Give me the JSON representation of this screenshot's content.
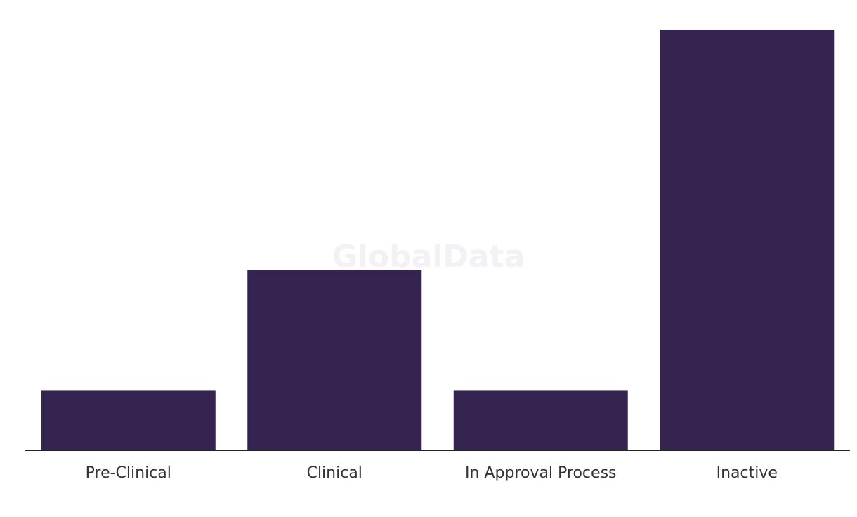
{
  "chart_data": {
    "type": "bar",
    "watermark": "GlobalData",
    "categories": [
      "Pre-Clinical",
      "Clinical",
      "In Approval Process",
      "Inactive"
    ],
    "values": [
      1,
      3,
      1,
      7
    ],
    "color": "#35244f",
    "ylim": [
      0,
      7
    ]
  }
}
